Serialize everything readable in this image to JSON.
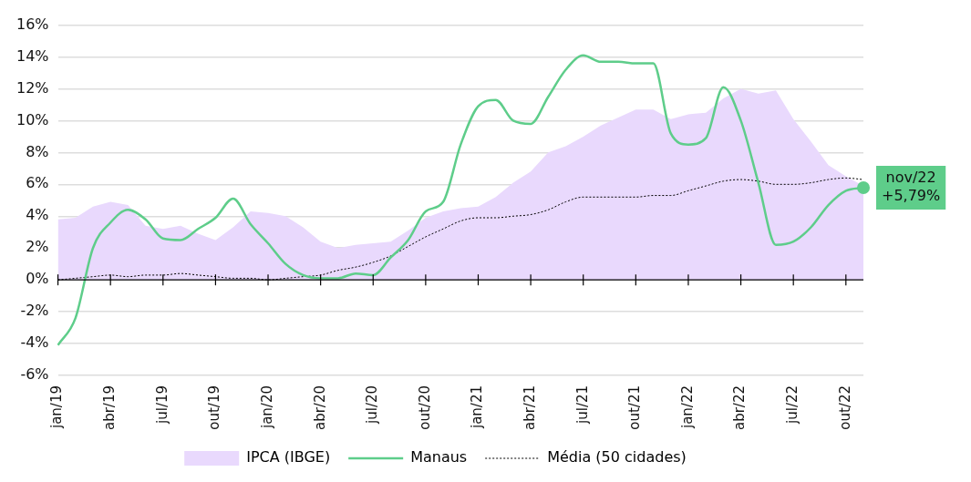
{
  "chart_data": {
    "type": "line",
    "categories": [
      "jan/19",
      null,
      null,
      "abr/19",
      null,
      null,
      "jul/19",
      null,
      null,
      "out/19",
      null,
      null,
      "jan/20",
      null,
      null,
      "abr/20",
      null,
      null,
      "jul/20",
      null,
      null,
      "out/20",
      null,
      null,
      "jan/21",
      null,
      null,
      "abr/21",
      null,
      null,
      "jul/21",
      null,
      null,
      "out/21",
      null,
      null,
      "jan/22",
      null,
      null,
      "abr/22",
      null,
      null,
      "jul/22",
      null,
      null,
      "out/22",
      null
    ],
    "ylim": [
      -6,
      16
    ],
    "yticks": [
      {
        "value": -6,
        "label": "-6%"
      },
      {
        "value": -4,
        "label": "-4%"
      },
      {
        "value": -2,
        "label": "-2%"
      },
      {
        "value": 0,
        "label": "0%"
      },
      {
        "value": 2,
        "label": "2%"
      },
      {
        "value": 4,
        "label": "4%"
      },
      {
        "value": 6,
        "label": "6%"
      },
      {
        "value": 8,
        "label": "8%"
      },
      {
        "value": 10,
        "label": "10%"
      },
      {
        "value": 12,
        "label": "12%"
      },
      {
        "value": 14,
        "label": "14%"
      },
      {
        "value": 16,
        "label": "16%"
      }
    ],
    "grid": "y",
    "legend": "bottom",
    "series": [
      {
        "name": "IPCA (IBGE)",
        "type": "area",
        "color": "#e9d9fd",
        "values": [
          3.8,
          3.9,
          4.6,
          4.9,
          4.7,
          3.4,
          3.2,
          3.4,
          2.9,
          2.5,
          3.3,
          4.3,
          4.2,
          4.0,
          3.3,
          2.4,
          2.0,
          2.2,
          2.3,
          2.4,
          3.1,
          3.9,
          4.3,
          4.5,
          4.6,
          5.2,
          6.1,
          6.8,
          8.0,
          8.4,
          9.0,
          9.7,
          10.2,
          10.7,
          10.7,
          10.1,
          10.4,
          10.5,
          11.4,
          12.0,
          11.7,
          11.9,
          10.1,
          8.7,
          7.2,
          6.5,
          5.9
        ]
      },
      {
        "name": "Manaus",
        "color": "#5ecd8a",
        "values": [
          -4.1,
          -2.4,
          2.0,
          3.6,
          4.4,
          3.8,
          2.6,
          2.5,
          3.2,
          3.9,
          5.1,
          3.5,
          2.3,
          1.0,
          0.3,
          0.1,
          0.1,
          0.4,
          0.3,
          1.4,
          2.5,
          4.3,
          4.9,
          8.5,
          10.9,
          11.3,
          10.0,
          9.8,
          11.5,
          13.2,
          14.1,
          13.7,
          13.7,
          13.6,
          13.6,
          9.2,
          8.5,
          8.9,
          12.1,
          10.0,
          6.1,
          2.2,
          2.4,
          3.3,
          4.7,
          5.6,
          5.79
        ]
      },
      {
        "name": "Média (50 cidades)",
        "color": "#000000",
        "line_style": "dotted",
        "values": [
          0,
          0.1,
          0.2,
          0.3,
          0.2,
          0.3,
          0.3,
          0.4,
          0.3,
          0.2,
          0.1,
          0.1,
          0,
          0.1,
          0.2,
          0.3,
          0.6,
          0.8,
          1.1,
          1.5,
          2.1,
          2.7,
          3.2,
          3.7,
          3.9,
          3.9,
          4.0,
          4.1,
          4.4,
          4.9,
          5.2,
          5.2,
          5.2,
          5.2,
          5.3,
          5.3,
          5.6,
          5.9,
          6.2,
          6.3,
          6.2,
          6.0,
          6.0,
          6.1,
          6.3,
          6.4,
          6.3
        ]
      }
    ],
    "annotations": [
      "nov/22\n+5,79%"
    ]
  }
}
